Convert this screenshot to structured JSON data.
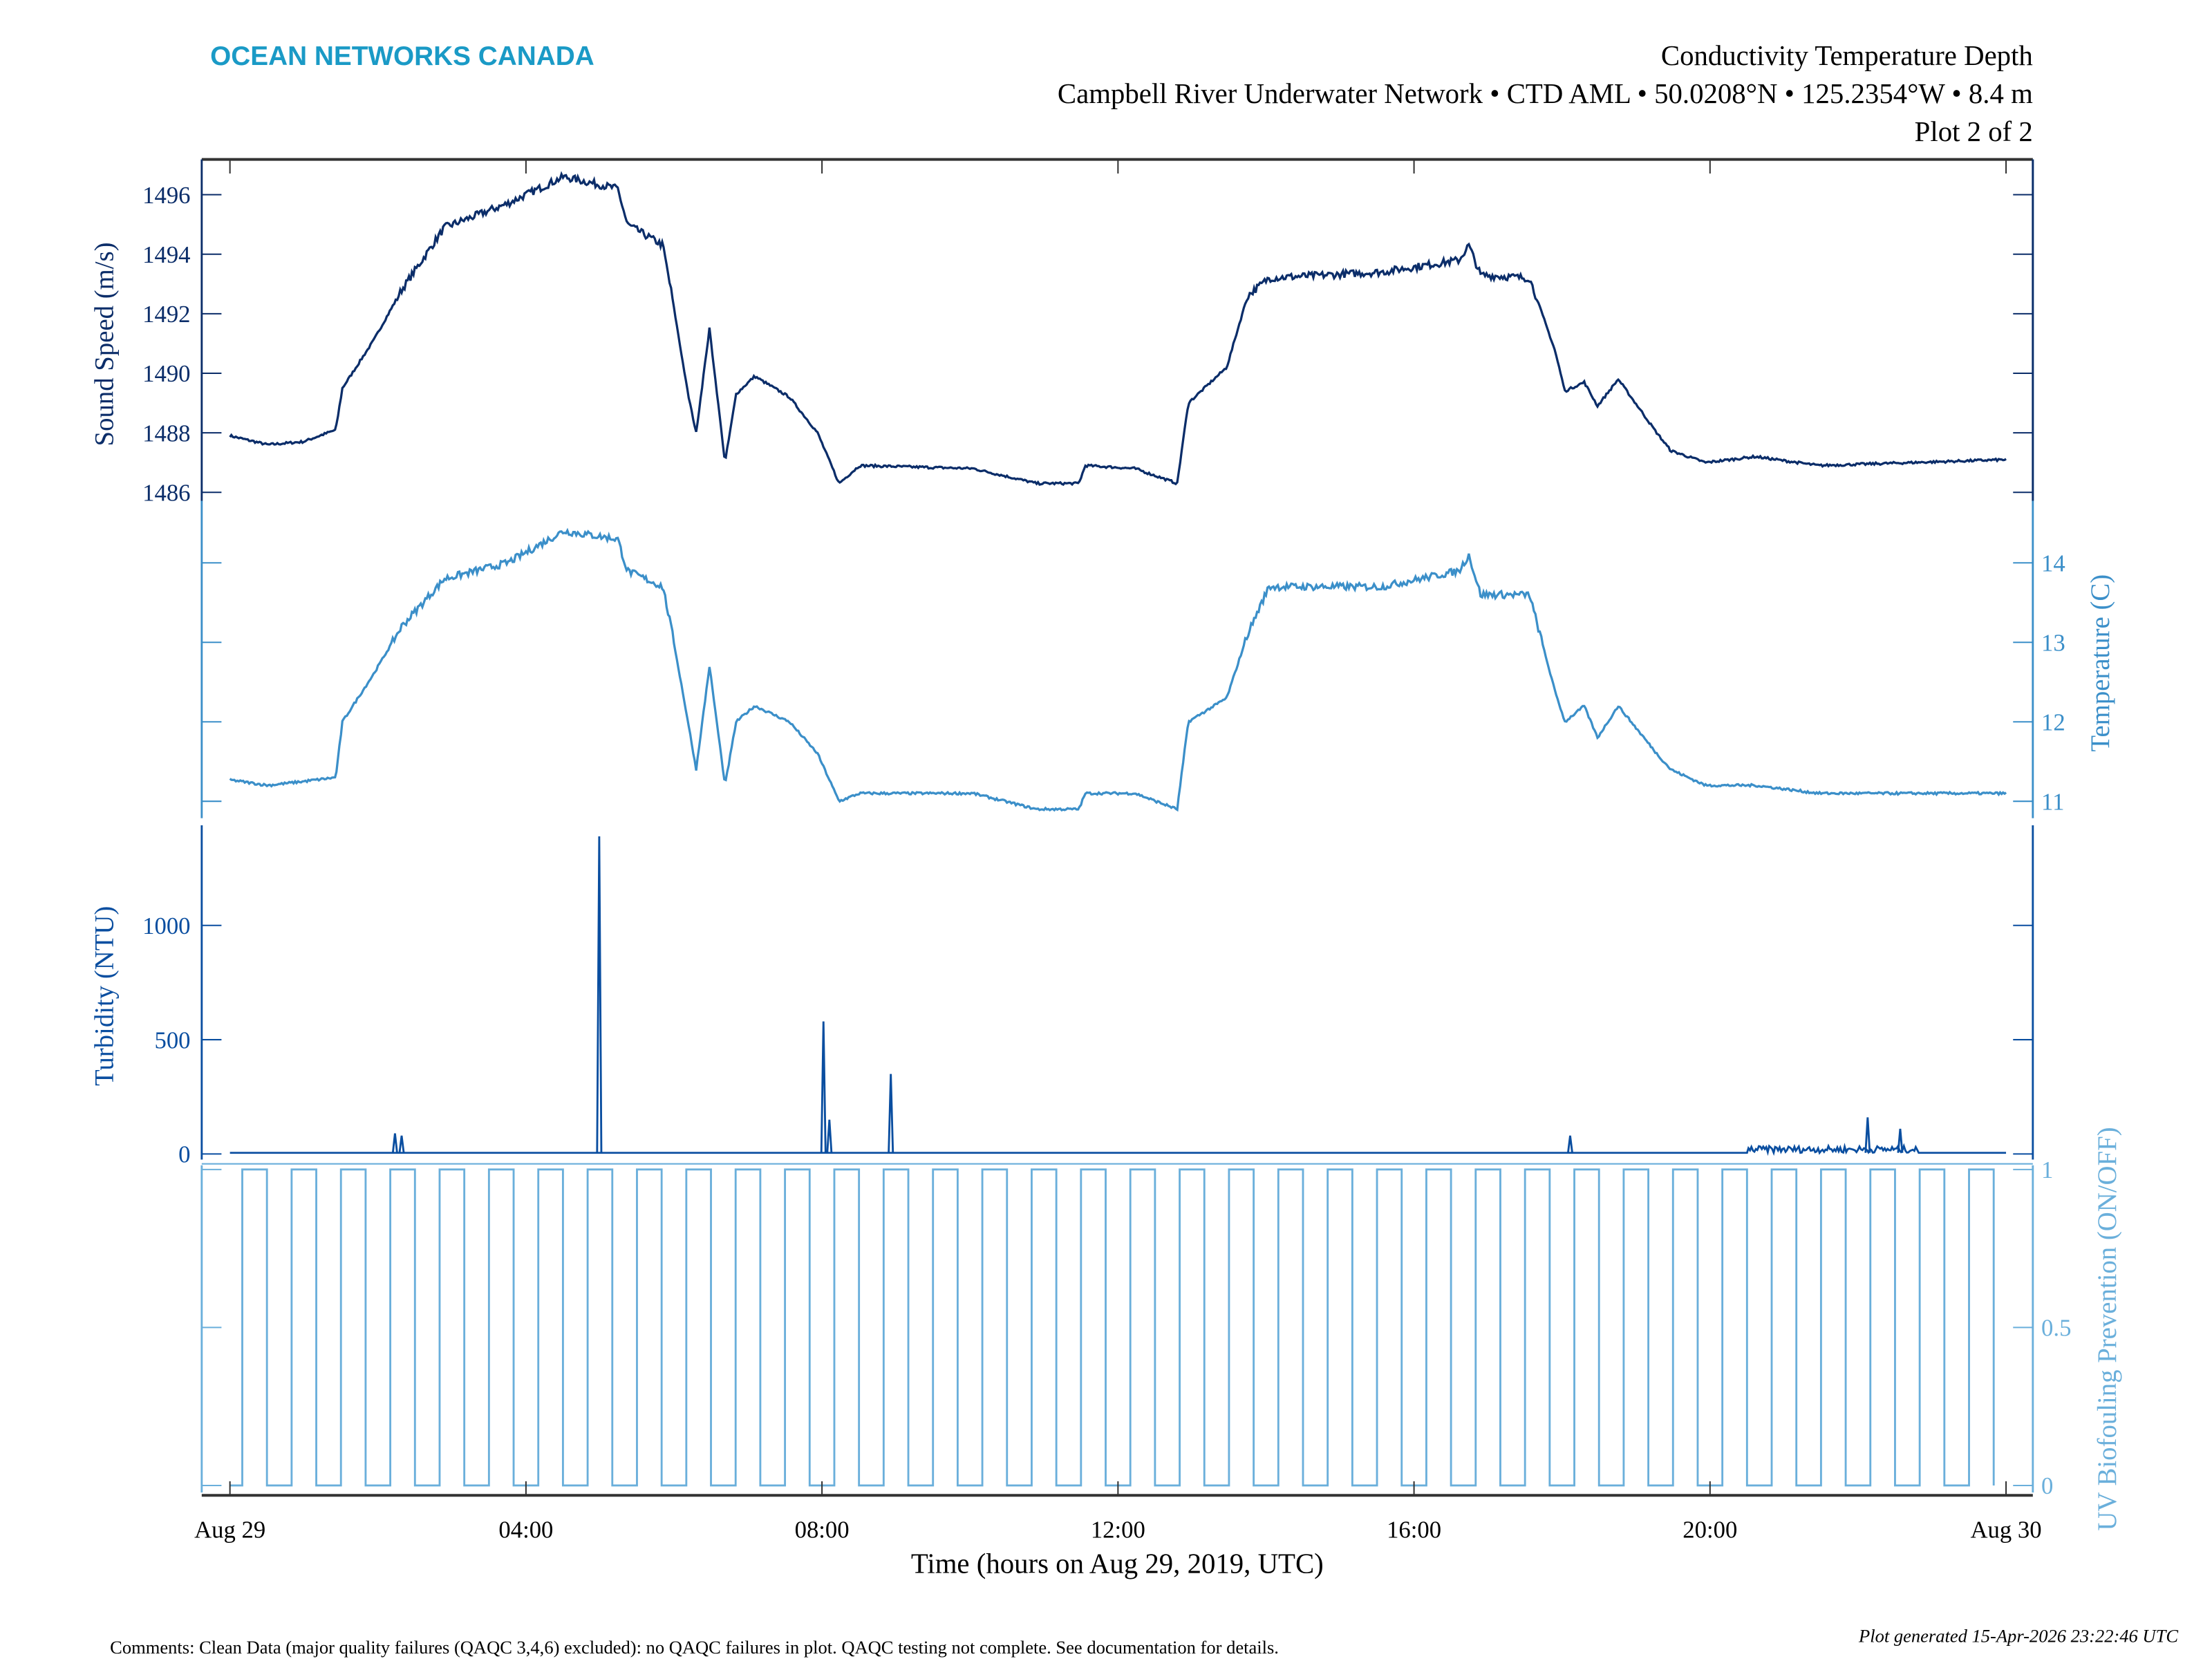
{
  "header": {
    "logo_text": "OCEAN NETWORKS CANADA",
    "title": "Conductivity Temperature Depth",
    "subtitle": "Campbell River Underwater Network • CTD AML • 50.0208°N • 125.2354°W • 8.4 m",
    "plot_index": "Plot 2 of 2"
  },
  "footer": {
    "comments": "Comments: Clean Data (major quality failures (QAQC 3,4,6) excluded): no QAQC failures in plot. QAQC testing not complete. See documentation for details.",
    "generated": "Plot generated 15-Apr-2026 23:22:46 UTC"
  },
  "colors": {
    "logo": "#1a9ac6",
    "sound_speed": "#0b2d69",
    "temperature": "#3b8fc9",
    "turbidity": "#0a4ea0",
    "uv": "#6aafdb",
    "frame": "#333333"
  },
  "chart_data": {
    "type": "line",
    "xlabel": "Time (hours on Aug 29, 2019, UTC)",
    "x_ticks": [
      {
        "hour": 0,
        "label": "Aug 29"
      },
      {
        "hour": 4,
        "label": "04:00"
      },
      {
        "hour": 8,
        "label": "08:00"
      },
      {
        "hour": 12,
        "label": "12:00"
      },
      {
        "hour": 16,
        "label": "16:00"
      },
      {
        "hour": 20,
        "label": "20:00"
      },
      {
        "hour": 24,
        "label": "Aug 30"
      }
    ],
    "xlim_hours": [
      0,
      24
    ],
    "grid": false,
    "panels": [
      {
        "key": "sound_speed",
        "ylabel": "Sound Speed (m/s)",
        "axis_side": "left",
        "ylim": [
          1485.5,
          1497
        ],
        "y_ticks": [
          1486,
          1488,
          1490,
          1492,
          1494,
          1496
        ],
        "hour": [
          0,
          0.51,
          0.99,
          1.43,
          1.52,
          1.94,
          2.32,
          2.9,
          3.75,
          4.51,
          5.24,
          5.37,
          5.85,
          5.98,
          6.19,
          6.3,
          6.48,
          6.69,
          6.84,
          7.09,
          7.56,
          7.94,
          8.23,
          8.51,
          10.04,
          10.9,
          11.47,
          11.56,
          12.23,
          12.8,
          12.95,
          13.47,
          13.75,
          14.04,
          15.56,
          16.61,
          16.74,
          16.9,
          17.56,
          17.9,
          18.04,
          18.3,
          18.48,
          18.76,
          19.28,
          19.47,
          19.94,
          20.61,
          21.47,
          24
        ],
        "values": [
          1487.9,
          1487.6,
          1487.7,
          1488.1,
          1489.5,
          1491.1,
          1492.8,
          1494.9,
          1495.7,
          1496.6,
          1496.2,
          1495.0,
          1494.3,
          1492.5,
          1489.3,
          1488.0,
          1491.5,
          1487.0,
          1489.3,
          1489.9,
          1489.2,
          1488.0,
          1486.3,
          1486.9,
          1486.8,
          1486.3,
          1486.3,
          1486.9,
          1486.8,
          1486.3,
          1489.0,
          1490.2,
          1492.6,
          1493.2,
          1493.4,
          1493.8,
          1494.3,
          1493.3,
          1493.2,
          1490.8,
          1489.4,
          1489.7,
          1488.9,
          1489.8,
          1488.0,
          1487.4,
          1487.0,
          1487.2,
          1486.9,
          1487.1
        ]
      },
      {
        "key": "temperature",
        "ylabel": "Temperature (C)",
        "axis_side": "right",
        "ylim": [
          10.95,
          14.6
        ],
        "y_ticks": [
          11,
          12,
          13,
          14
        ],
        "hour": [
          0,
          0.51,
          0.99,
          1.43,
          1.52,
          1.94,
          2.32,
          2.9,
          3.75,
          4.51,
          5.24,
          5.37,
          5.85,
          5.98,
          6.19,
          6.3,
          6.48,
          6.69,
          6.84,
          7.09,
          7.56,
          7.94,
          8.23,
          8.51,
          10.04,
          10.9,
          11.47,
          11.56,
          12.23,
          12.8,
          12.95,
          13.47,
          13.75,
          14.04,
          15.56,
          16.61,
          16.74,
          16.9,
          17.56,
          17.9,
          18.04,
          18.3,
          18.48,
          18.76,
          19.28,
          19.47,
          19.94,
          20.61,
          21.47,
          24
        ],
        "values": [
          11.27,
          11.2,
          11.25,
          11.3,
          12.0,
          12.6,
          13.2,
          13.8,
          14.0,
          14.4,
          14.3,
          13.9,
          13.7,
          13.1,
          12.0,
          11.4,
          12.7,
          11.2,
          12.0,
          12.2,
          12.0,
          11.6,
          11.0,
          11.1,
          11.1,
          10.9,
          10.9,
          11.1,
          11.1,
          10.9,
          12.0,
          12.3,
          13.1,
          13.7,
          13.7,
          13.9,
          14.1,
          13.6,
          13.6,
          12.4,
          12.0,
          12.2,
          11.8,
          12.2,
          11.6,
          11.4,
          11.2,
          11.2,
          11.1,
          11.1
        ]
      },
      {
        "key": "turbidity",
        "ylabel": "Turbidity (NTU)",
        "axis_side": "left",
        "ylim": [
          0,
          1400
        ],
        "y_ticks": [
          0,
          500,
          1000
        ],
        "baseline": 5,
        "spikes": [
          {
            "hour": 2.23,
            "value": 90
          },
          {
            "hour": 2.32,
            "value": 80
          },
          {
            "hour": 4.99,
            "value": 1390
          },
          {
            "hour": 8.02,
            "value": 580
          },
          {
            "hour": 8.1,
            "value": 150
          },
          {
            "hour": 8.93,
            "value": 350
          },
          {
            "hour": 18.11,
            "value": 80
          },
          {
            "hour": 22.13,
            "value": 160
          },
          {
            "hour": 22.57,
            "value": 110
          }
        ],
        "elevated_period": {
          "start_hour": 20.5,
          "end_hour": 22.8,
          "value": 30
        }
      },
      {
        "key": "uv",
        "ylabel": "UV Biofouling Prevention (ON/OFF)",
        "axis_side": "right",
        "ylim": [
          0,
          1
        ],
        "y_ticks": [
          0,
          0.5,
          1
        ],
        "y_tick_labels": [
          "0",
          "0.5",
          "1"
        ],
        "square_wave": {
          "first_on": "00:10",
          "period_minutes": 40,
          "on_minutes": 20
        }
      }
    ]
  }
}
